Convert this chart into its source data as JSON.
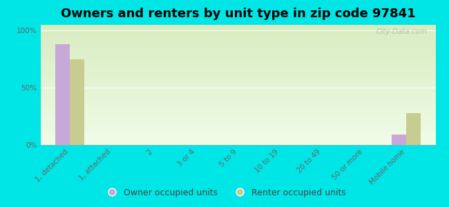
{
  "title": "Owners and renters by unit type in zip code 97841",
  "categories": [
    "1, detached",
    "1, attached",
    "2",
    "3 or 4",
    "5 to 9",
    "10 to 19",
    "20 to 49",
    "50 or more",
    "Mobile home"
  ],
  "owner_values": [
    88,
    0,
    0,
    0,
    0,
    0,
    0,
    0,
    9
  ],
  "renter_values": [
    75,
    0,
    0,
    0,
    0,
    0,
    0,
    0,
    28
  ],
  "owner_color": "#c8a8d8",
  "renter_color": "#c8cc90",
  "bg_outer": "#00e5e5",
  "yticks": [
    0,
    50,
    100
  ],
  "ylabels": [
    "0%",
    "50%",
    "100%"
  ],
  "ylim": [
    0,
    105
  ],
  "bar_width": 0.35,
  "legend_owner": "Owner occupied units",
  "legend_renter": "Renter occupied units",
  "watermark": "City-Data.com",
  "title_fontsize": 13,
  "tick_fontsize": 7.5,
  "legend_fontsize": 9,
  "grad_top": "#d8ecc0",
  "grad_bottom": "#f0fce8"
}
